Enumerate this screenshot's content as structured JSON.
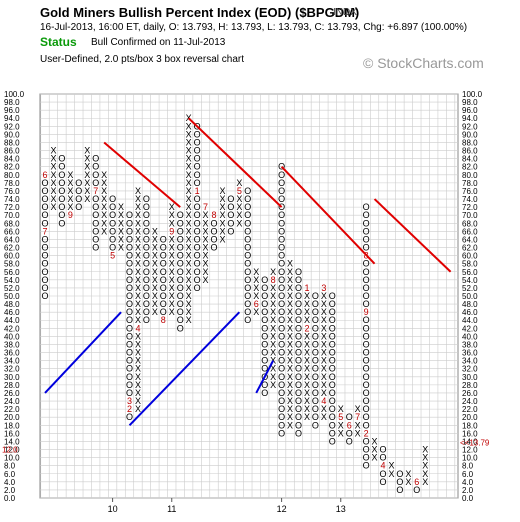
{
  "header": {
    "title": "Gold Miners Bullish Percent Index (EOD) ($BPGDM)",
    "exchange": "INDX",
    "quote_line": "16-Jul-2013, 16:00 ET, daily, O: 13.793, H: 13.793, L: 13.793, C: 13.793, Chg: +6.897 (100.00%)",
    "status_label": "Status",
    "status_text": "Bull Confirmed on 11-Jul-2013",
    "subtitle": "User-Defined, 2.0 pts/box 3 box reversal chart",
    "watermark": "© StockCharts.com"
  },
  "colors": {
    "x_mark": "#000000",
    "o_mark": "#000000",
    "month_marker": "#c00000",
    "resistance_line": "#e00000",
    "support_line": "#0000dd",
    "last_price_marker": "#c00000",
    "status": "#0a9a0a",
    "grid": "#cccccc"
  },
  "chart_data": {
    "type": "point-and-figure",
    "box_size": 2.0,
    "reversal_boxes": 3,
    "ylim": [
      0,
      100
    ],
    "y_tick_labels": [
      "0.0",
      "2.0",
      "4.0",
      "6.0",
      "8.0",
      "10.0",
      "12.0",
      "14.0",
      "16.0",
      "18.0",
      "20.0",
      "22.0",
      "24.0",
      "26.0",
      "28.0",
      "30.0",
      "32.0",
      "34.0",
      "36.0",
      "38.0",
      "40.0",
      "42.0",
      "44.0",
      "46.0",
      "48.0",
      "50.0",
      "52.0",
      "54.0",
      "56.0",
      "58.0",
      "60.0",
      "62.0",
      "64.0",
      "66.0",
      "68.0",
      "70.0",
      "72.0",
      "74.0",
      "76.0",
      "78.0",
      "80.0",
      "82.0",
      "84.0",
      "86.0",
      "88.0",
      "90.0",
      "92.0",
      "94.0",
      "96.0",
      "98.0",
      "100.0"
    ],
    "x_tick_labels": [
      {
        "label": "10",
        "column": 8
      },
      {
        "label": "11",
        "column": 15
      },
      {
        "label": "12",
        "column": 28
      },
      {
        "label": "13",
        "column": 35
      }
    ],
    "columns": [
      {
        "type": "O",
        "from": 50,
        "to": 80
      },
      {
        "type": "X",
        "from": 72,
        "to": 86
      },
      {
        "type": "O",
        "from": 68,
        "to": 84
      },
      {
        "type": "X",
        "from": 70,
        "to": 80
      },
      {
        "type": "O",
        "from": 72,
        "to": 78
      },
      {
        "type": "X",
        "from": 74,
        "to": 86
      },
      {
        "type": "O",
        "from": 62,
        "to": 84
      },
      {
        "type": "X",
        "from": 66,
        "to": 80
      },
      {
        "type": "O",
        "from": 60,
        "to": 74
      },
      {
        "type": "X",
        "from": 62,
        "to": 72
      },
      {
        "type": "O",
        "from": 20,
        "to": 70
      },
      {
        "type": "X",
        "from": 22,
        "to": 76
      },
      {
        "type": "O",
        "from": 44,
        "to": 74
      },
      {
        "type": "X",
        "from": 46,
        "to": 66
      },
      {
        "type": "O",
        "from": 44,
        "to": 64
      },
      {
        "type": "X",
        "from": 46,
        "to": 72
      },
      {
        "type": "O",
        "from": 42,
        "to": 70
      },
      {
        "type": "X",
        "from": 44,
        "to": 94
      },
      {
        "type": "O",
        "from": 52,
        "to": 92
      },
      {
        "type": "X",
        "from": 54,
        "to": 72
      },
      {
        "type": "O",
        "from": 62,
        "to": 70
      },
      {
        "type": "X",
        "from": 64,
        "to": 76
      },
      {
        "type": "O",
        "from": 66,
        "to": 74
      },
      {
        "type": "X",
        "from": 68,
        "to": 78
      },
      {
        "type": "O",
        "from": 44,
        "to": 76
      },
      {
        "type": "X",
        "from": 46,
        "to": 56
      },
      {
        "type": "O",
        "from": 26,
        "to": 54
      },
      {
        "type": "X",
        "from": 28,
        "to": 56
      },
      {
        "type": "O",
        "from": 16,
        "to": 82
      },
      {
        "type": "X",
        "from": 18,
        "to": 58
      },
      {
        "type": "O",
        "from": 16,
        "to": 56
      },
      {
        "type": "X",
        "from": 20,
        "to": 52
      },
      {
        "type": "O",
        "from": 18,
        "to": 50
      },
      {
        "type": "X",
        "from": 20,
        "to": 52
      },
      {
        "type": "O",
        "from": 14,
        "to": 50
      },
      {
        "type": "X",
        "from": 16,
        "to": 22
      },
      {
        "type": "O",
        "from": 14,
        "to": 20
      },
      {
        "type": "X",
        "from": 16,
        "to": 22
      },
      {
        "type": "O",
        "from": 8,
        "to": 72
      },
      {
        "type": "X",
        "from": 10,
        "to": 14
      },
      {
        "type": "O",
        "from": 4,
        "to": 12
      },
      {
        "type": "X",
        "from": 6,
        "to": 8
      },
      {
        "type": "O",
        "from": 2,
        "to": 6
      },
      {
        "type": "X",
        "from": 4,
        "to": 6
      },
      {
        "type": "O",
        "from": 2,
        "to": 4
      },
      {
        "type": "X",
        "from": 4,
        "to": 12
      }
    ],
    "month_markers": [
      {
        "label": "6",
        "column": 0,
        "value": 80
      },
      {
        "label": "7",
        "column": 0,
        "value": 66
      },
      {
        "label": "9",
        "column": 3,
        "value": 70
      },
      {
        "label": "4",
        "column": 5,
        "value": 70
      },
      {
        "label": "7",
        "column": 6,
        "value": 76
      },
      {
        "label": "5",
        "column": 8,
        "value": 60
      },
      {
        "label": "6",
        "column": 13,
        "value": 44
      },
      {
        "label": "8",
        "column": 14,
        "value": 44
      },
      {
        "label": "9",
        "column": 15,
        "value": 66
      },
      {
        "label": "4",
        "column": 11,
        "value": 42
      },
      {
        "label": "2",
        "column": 10,
        "value": 22
      },
      {
        "label": "3",
        "column": 10,
        "value": 24
      },
      {
        "label": "1",
        "column": 18,
        "value": 76
      },
      {
        "label": "7",
        "column": 19,
        "value": 72
      },
      {
        "label": "8",
        "column": 20,
        "value": 70
      },
      {
        "label": "4",
        "column": 21,
        "value": 62
      },
      {
        "label": "5",
        "column": 23,
        "value": 76
      },
      {
        "label": "6",
        "column": 25,
        "value": 48
      },
      {
        "label": "8",
        "column": 27,
        "value": 54
      },
      {
        "label": "1",
        "column": 31,
        "value": 52
      },
      {
        "label": "2",
        "column": 31,
        "value": 42
      },
      {
        "label": "3",
        "column": 33,
        "value": 52
      },
      {
        "label": "4",
        "column": 33,
        "value": 24
      },
      {
        "label": "5",
        "column": 35,
        "value": 20
      },
      {
        "label": "6",
        "column": 36,
        "value": 18
      },
      {
        "label": "7",
        "column": 37,
        "value": 20
      },
      {
        "label": "8",
        "column": 38,
        "value": 60
      },
      {
        "label": "9",
        "column": 38,
        "value": 46
      },
      {
        "label": "1",
        "column": 39,
        "value": 30
      },
      {
        "label": "2",
        "column": 38,
        "value": 16
      },
      {
        "label": "4",
        "column": 40,
        "value": 8
      },
      {
        "label": "5",
        "column": 41,
        "value": 2
      },
      {
        "label": "6",
        "column": 44,
        "value": 4
      },
      {
        "label": "7",
        "column": 45,
        "value": 0
      }
    ],
    "trend_lines": [
      {
        "kind": "resistance",
        "from": {
          "column": 7,
          "value": 88
        },
        "to": {
          "column": 16,
          "value": 72
        }
      },
      {
        "kind": "resistance",
        "from": {
          "column": 17,
          "value": 94
        },
        "to": {
          "column": 28,
          "value": 72
        }
      },
      {
        "kind": "resistance",
        "from": {
          "column": 28,
          "value": 82
        },
        "to": {
          "column": 39,
          "value": 58
        }
      },
      {
        "kind": "resistance",
        "from": {
          "column": 39,
          "value": 74
        },
        "to": {
          "column": 48,
          "value": 56
        }
      },
      {
        "kind": "support",
        "from": {
          "column": 0,
          "value": 26
        },
        "to": {
          "column": 9,
          "value": 46
        }
      },
      {
        "kind": "support",
        "from": {
          "column": 10,
          "value": 18
        },
        "to": {
          "column": 23,
          "value": 46
        }
      },
      {
        "kind": "support",
        "from": {
          "column": 25,
          "value": 26
        },
        "to": {
          "column": 27,
          "value": 34
        }
      }
    ],
    "last_price": {
      "value": 13.79,
      "label": "13.79",
      "marker_label": "12.0"
    }
  }
}
